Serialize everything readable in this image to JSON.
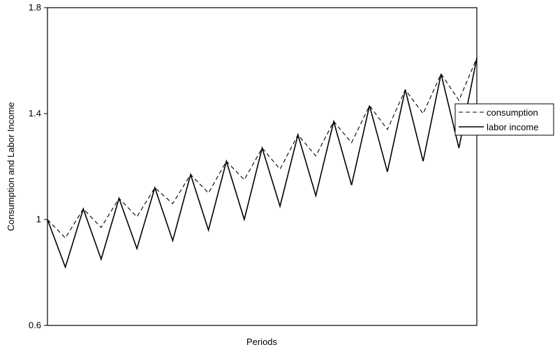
{
  "chart_data": {
    "type": "line",
    "title": "",
    "xlabel": "Periods",
    "ylabel": "Consumption and Labor Income",
    "ylim": [
      0.6,
      1.8
    ],
    "yticks": [
      "0.6",
      "1",
      "1.4",
      "1.8"
    ],
    "ytick_values": [
      0.6,
      1.0,
      1.4,
      1.8
    ],
    "x": [
      1,
      2,
      3,
      4,
      5,
      6,
      7,
      8,
      9,
      10,
      11,
      12,
      13,
      14,
      15,
      16,
      17,
      18,
      19,
      20,
      21,
      22,
      23,
      24,
      25
    ],
    "series": [
      {
        "name": "consumption",
        "style": "dashed",
        "color": "#000000",
        "values": [
          1.0,
          0.93,
          1.04,
          0.97,
          1.08,
          1.01,
          1.12,
          1.06,
          1.17,
          1.1,
          1.22,
          1.15,
          1.27,
          1.19,
          1.32,
          1.24,
          1.37,
          1.29,
          1.43,
          1.34,
          1.49,
          1.4,
          1.55,
          1.45,
          1.61
        ]
      },
      {
        "name": "labor income",
        "style": "solid",
        "color": "#000000",
        "values": [
          1.0,
          0.82,
          1.04,
          0.85,
          1.08,
          0.89,
          1.12,
          0.92,
          1.17,
          0.96,
          1.22,
          1.0,
          1.27,
          1.05,
          1.32,
          1.09,
          1.37,
          1.13,
          1.43,
          1.18,
          1.49,
          1.22,
          1.55,
          1.27,
          1.61
        ]
      }
    ],
    "legend_position": "right"
  }
}
